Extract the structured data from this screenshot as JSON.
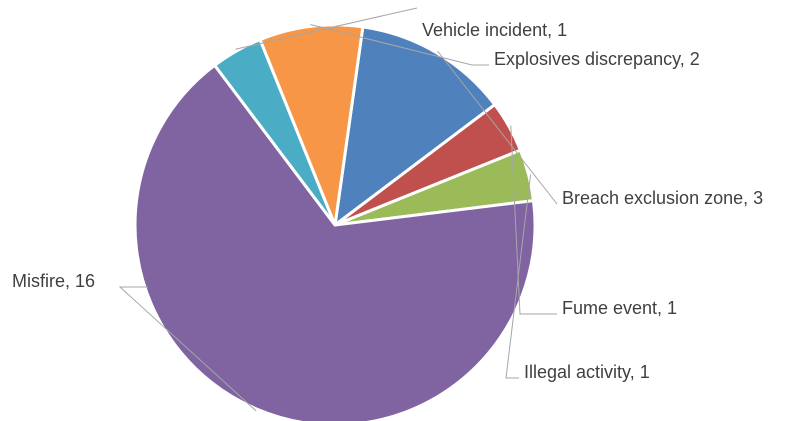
{
  "chart_data": {
    "type": "pie",
    "title": "",
    "slices": [
      {
        "label": "Breach exclusion zone",
        "value": 3,
        "color": "#4f81bd"
      },
      {
        "label": "Fume event",
        "value": 1,
        "color": "#c0504d"
      },
      {
        "label": "Illegal activity",
        "value": 1,
        "color": "#9bbb59"
      },
      {
        "label": "Misfire",
        "value": 16,
        "color": "#8064a2"
      },
      {
        "label": "Vehicle incident",
        "value": 1,
        "color": "#4bacc6"
      },
      {
        "label": "Explosives discrepancy",
        "value": 2,
        "color": "#f79646"
      }
    ],
    "data_labels": [
      {
        "text": "Breach exclusion zone, 3"
      },
      {
        "text": "Fume event, 1"
      },
      {
        "text": "Illegal activity, 1"
      },
      {
        "text": "Misfire, 16"
      },
      {
        "text": "Vehicle incident, 1"
      },
      {
        "text": "Explosives discrepancy, 2"
      }
    ],
    "legend": "none",
    "label_position": "outside-with-leader-lines"
  }
}
